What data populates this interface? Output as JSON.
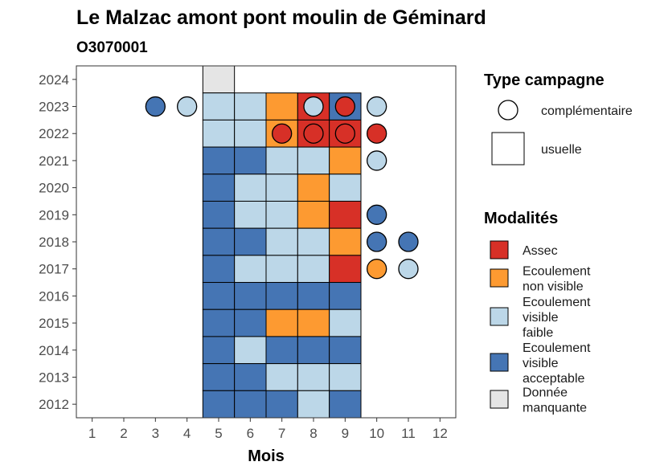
{
  "chart_data": {
    "type": "heatmap",
    "title": "Le Malzac amont pont moulin de Géminard",
    "subtitle": "O3070001",
    "xlabel": "Mois",
    "ylabel": "",
    "x_ticks": [
      "1",
      "2",
      "3",
      "4",
      "5",
      "6",
      "7",
      "8",
      "9",
      "10",
      "11",
      "12"
    ],
    "y_ticks": [
      "2012",
      "2013",
      "2014",
      "2015",
      "2016",
      "2017",
      "2018",
      "2019",
      "2020",
      "2021",
      "2022",
      "2023",
      "2024"
    ],
    "xlim": [
      0.5,
      12.5
    ],
    "ylim": [
      2011.5,
      2024.5
    ],
    "grid": false,
    "legend_position": "right",
    "colors": {
      "Assec": "#d73027",
      "Ecoulement non visible": "#fd9a31",
      "Ecoulement visible faible": "#bcd7e8",
      "Ecoulement visible acceptable": "#4575b4",
      "Donnée manquante": "#e5e5e5"
    },
    "usuelle": [
      {
        "year": 2024,
        "month": 5,
        "modalite": "Donnée manquante"
      },
      {
        "year": 2023,
        "month": 5,
        "modalite": "Ecoulement visible faible"
      },
      {
        "year": 2023,
        "month": 6,
        "modalite": "Ecoulement visible faible"
      },
      {
        "year": 2023,
        "month": 7,
        "modalite": "Ecoulement non visible"
      },
      {
        "year": 2023,
        "month": 8,
        "modalite": "Assec"
      },
      {
        "year": 2023,
        "month": 9,
        "modalite": "Ecoulement visible acceptable"
      },
      {
        "year": 2022,
        "month": 5,
        "modalite": "Ecoulement visible faible"
      },
      {
        "year": 2022,
        "month": 6,
        "modalite": "Ecoulement visible faible"
      },
      {
        "year": 2022,
        "month": 7,
        "modalite": "Ecoulement non visible"
      },
      {
        "year": 2022,
        "month": 8,
        "modalite": "Assec"
      },
      {
        "year": 2022,
        "month": 9,
        "modalite": "Assec"
      },
      {
        "year": 2021,
        "month": 5,
        "modalite": "Ecoulement visible acceptable"
      },
      {
        "year": 2021,
        "month": 6,
        "modalite": "Ecoulement visible acceptable"
      },
      {
        "year": 2021,
        "month": 7,
        "modalite": "Ecoulement visible faible"
      },
      {
        "year": 2021,
        "month": 8,
        "modalite": "Ecoulement visible faible"
      },
      {
        "year": 2021,
        "month": 9,
        "modalite": "Ecoulement non visible"
      },
      {
        "year": 2020,
        "month": 5,
        "modalite": "Ecoulement visible acceptable"
      },
      {
        "year": 2020,
        "month": 6,
        "modalite": "Ecoulement visible faible"
      },
      {
        "year": 2020,
        "month": 7,
        "modalite": "Ecoulement visible faible"
      },
      {
        "year": 2020,
        "month": 8,
        "modalite": "Ecoulement non visible"
      },
      {
        "year": 2020,
        "month": 9,
        "modalite": "Ecoulement visible faible"
      },
      {
        "year": 2019,
        "month": 5,
        "modalite": "Ecoulement visible acceptable"
      },
      {
        "year": 2019,
        "month": 6,
        "modalite": "Ecoulement visible faible"
      },
      {
        "year": 2019,
        "month": 7,
        "modalite": "Ecoulement visible faible"
      },
      {
        "year": 2019,
        "month": 8,
        "modalite": "Ecoulement non visible"
      },
      {
        "year": 2019,
        "month": 9,
        "modalite": "Assec"
      },
      {
        "year": 2018,
        "month": 5,
        "modalite": "Ecoulement visible acceptable"
      },
      {
        "year": 2018,
        "month": 6,
        "modalite": "Ecoulement visible acceptable"
      },
      {
        "year": 2018,
        "month": 7,
        "modalite": "Ecoulement visible faible"
      },
      {
        "year": 2018,
        "month": 8,
        "modalite": "Ecoulement visible faible"
      },
      {
        "year": 2018,
        "month": 9,
        "modalite": "Ecoulement non visible"
      },
      {
        "year": 2017,
        "month": 5,
        "modalite": "Ecoulement visible acceptable"
      },
      {
        "year": 2017,
        "month": 6,
        "modalite": "Ecoulement visible faible"
      },
      {
        "year": 2017,
        "month": 7,
        "modalite": "Ecoulement visible faible"
      },
      {
        "year": 2017,
        "month": 8,
        "modalite": "Ecoulement visible faible"
      },
      {
        "year": 2017,
        "month": 9,
        "modalite": "Assec"
      },
      {
        "year": 2016,
        "month": 5,
        "modalite": "Ecoulement visible acceptable"
      },
      {
        "year": 2016,
        "month": 6,
        "modalite": "Ecoulement visible acceptable"
      },
      {
        "year": 2016,
        "month": 7,
        "modalite": "Ecoulement visible acceptable"
      },
      {
        "year": 2016,
        "month": 8,
        "modalite": "Ecoulement visible acceptable"
      },
      {
        "year": 2016,
        "month": 9,
        "modalite": "Ecoulement visible acceptable"
      },
      {
        "year": 2015,
        "month": 5,
        "modalite": "Ecoulement visible acceptable"
      },
      {
        "year": 2015,
        "month": 6,
        "modalite": "Ecoulement visible acceptable"
      },
      {
        "year": 2015,
        "month": 7,
        "modalite": "Ecoulement non visible"
      },
      {
        "year": 2015,
        "month": 8,
        "modalite": "Ecoulement non visible"
      },
      {
        "year": 2015,
        "month": 9,
        "modalite": "Ecoulement visible faible"
      },
      {
        "year": 2014,
        "month": 5,
        "modalite": "Ecoulement visible acceptable"
      },
      {
        "year": 2014,
        "month": 6,
        "modalite": "Ecoulement visible faible"
      },
      {
        "year": 2014,
        "month": 7,
        "modalite": "Ecoulement visible acceptable"
      },
      {
        "year": 2014,
        "month": 8,
        "modalite": "Ecoulement visible acceptable"
      },
      {
        "year": 2014,
        "month": 9,
        "modalite": "Ecoulement visible acceptable"
      },
      {
        "year": 2013,
        "month": 5,
        "modalite": "Ecoulement visible acceptable"
      },
      {
        "year": 2013,
        "month": 6,
        "modalite": "Ecoulement visible acceptable"
      },
      {
        "year": 2013,
        "month": 7,
        "modalite": "Ecoulement visible faible"
      },
      {
        "year": 2013,
        "month": 8,
        "modalite": "Ecoulement visible faible"
      },
      {
        "year": 2013,
        "month": 9,
        "modalite": "Ecoulement visible faible"
      },
      {
        "year": 2012,
        "month": 5,
        "modalite": "Ecoulement visible acceptable"
      },
      {
        "year": 2012,
        "month": 6,
        "modalite": "Ecoulement visible acceptable"
      },
      {
        "year": 2012,
        "month": 7,
        "modalite": "Ecoulement visible acceptable"
      },
      {
        "year": 2012,
        "month": 8,
        "modalite": "Ecoulement visible faible"
      },
      {
        "year": 2012,
        "month": 9,
        "modalite": "Ecoulement visible acceptable"
      }
    ],
    "complementaire": [
      {
        "year": 2023,
        "month": 3,
        "modalite": "Ecoulement visible acceptable"
      },
      {
        "year": 2023,
        "month": 4,
        "modalite": "Ecoulement visible faible"
      },
      {
        "year": 2023,
        "month": 8,
        "modalite": "Ecoulement visible faible"
      },
      {
        "year": 2023,
        "month": 9,
        "modalite": "Assec"
      },
      {
        "year": 2023,
        "month": 10,
        "modalite": "Ecoulement visible faible"
      },
      {
        "year": 2022,
        "month": 7,
        "modalite": "Assec"
      },
      {
        "year": 2022,
        "month": 8,
        "modalite": "Assec"
      },
      {
        "year": 2022,
        "month": 9,
        "modalite": "Assec"
      },
      {
        "year": 2022,
        "month": 10,
        "modalite": "Assec"
      },
      {
        "year": 2021,
        "month": 10,
        "modalite": "Ecoulement visible faible"
      },
      {
        "year": 2019,
        "month": 10,
        "modalite": "Ecoulement visible acceptable"
      },
      {
        "year": 2018,
        "month": 10,
        "modalite": "Ecoulement visible acceptable"
      },
      {
        "year": 2018,
        "month": 11,
        "modalite": "Ecoulement visible acceptable"
      },
      {
        "year": 2017,
        "month": 10,
        "modalite": "Ecoulement non visible"
      },
      {
        "year": 2017,
        "month": 11,
        "modalite": "Ecoulement visible faible"
      }
    ],
    "legend_type": {
      "title": "Type campagne",
      "items": [
        "complémentaire",
        "usuelle"
      ]
    },
    "legend_modalites": {
      "title": "Modalités",
      "items": [
        {
          "key": "Assec",
          "lines": [
            "Assec"
          ]
        },
        {
          "key": "Ecoulement non visible",
          "lines": [
            "Ecoulement",
            "non visible"
          ]
        },
        {
          "key": "Ecoulement visible faible",
          "lines": [
            "Ecoulement",
            "visible",
            "faible"
          ]
        },
        {
          "key": "Ecoulement visible acceptable",
          "lines": [
            "Ecoulement",
            "visible",
            "acceptable"
          ]
        },
        {
          "key": "Donnée manquante",
          "lines": [
            "Donnée",
            "manquante"
          ]
        }
      ]
    }
  }
}
